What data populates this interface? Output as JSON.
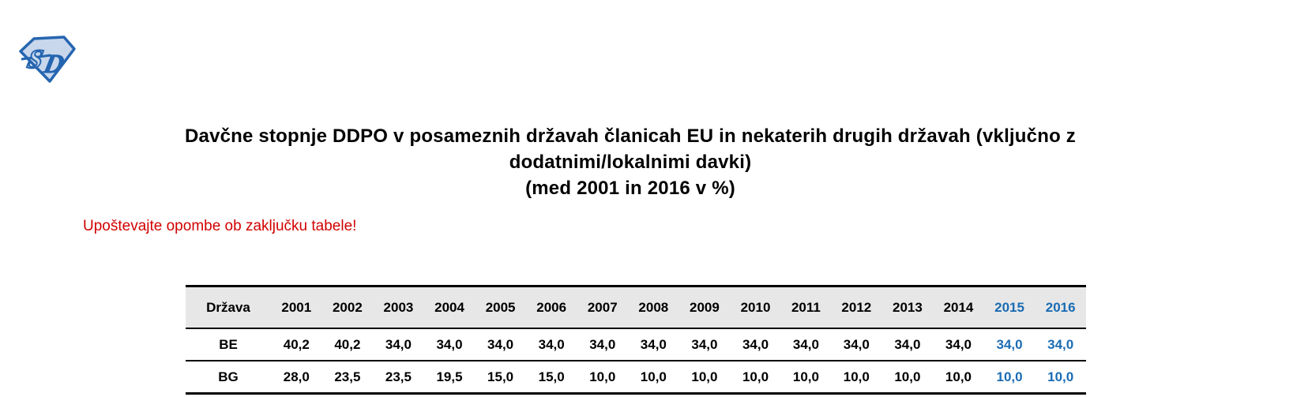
{
  "logo": {
    "icon": "sd-diamond-logo",
    "letter_s": "S",
    "letter_d": "D"
  },
  "title": {
    "line1": "Davčne stopnje DDPO v posameznih državah članicah EU in nekaterih drugih državah (vključno z",
    "line2": "dodatnimi/lokalnimi davki)",
    "line3": "(med 2001 in 2016 v %)"
  },
  "note": "Upoštevajte opombe ob zaključku tabele!",
  "table": {
    "columns": [
      "Država",
      "2001",
      "2002",
      "2003",
      "2004",
      "2005",
      "2006",
      "2007",
      "2008",
      "2009",
      "2010",
      "2011",
      "2012",
      "2013",
      "2014",
      "2015",
      "2016"
    ],
    "highlight_years": [
      "2015",
      "2016"
    ],
    "rows": [
      {
        "country": "BE",
        "values": [
          "40,2",
          "40,2",
          "34,0",
          "34,0",
          "34,0",
          "34,0",
          "34,0",
          "34,0",
          "34,0",
          "34,0",
          "34,0",
          "34,0",
          "34,0",
          "34,0",
          "34,0",
          "34,0"
        ]
      },
      {
        "country": "BG",
        "values": [
          "28,0",
          "23,5",
          "23,5",
          "19,5",
          "15,0",
          "15,0",
          "10,0",
          "10,0",
          "10,0",
          "10,0",
          "10,0",
          "10,0",
          "10,0",
          "10,0",
          "10,0",
          "10,0"
        ]
      }
    ]
  },
  "colors": {
    "accent_blue": "#1a6cb3",
    "note_red": "#d20000",
    "header_bg": "#e7e7e7",
    "logo_blue": "#2565b0",
    "logo_light": "#c8d7ec"
  }
}
